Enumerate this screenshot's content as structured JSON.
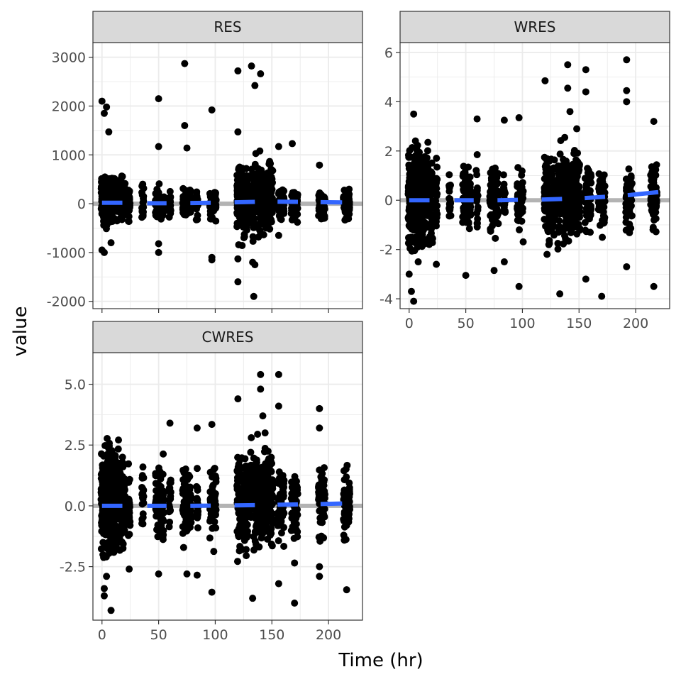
{
  "figure": {
    "xlabel": "Time (hr)",
    "ylabel": "value"
  },
  "colors": {
    "point": "#000000",
    "zero_line": "#b3b3b3",
    "smooth_line": "#3366ff",
    "strip_fill": "#d9d9d9",
    "panel_border": "#333333",
    "grid": "#ebebeb",
    "tick_text": "#4d4d4d"
  },
  "chart_data": [
    {
      "type": "scatter",
      "title": "RES",
      "xlim": [
        -8,
        230
      ],
      "ylim": [
        -2150,
        3300
      ],
      "xticks": [
        0,
        50,
        100,
        150,
        200
      ],
      "yticks": [
        -2000,
        -1000,
        0,
        1000,
        2000,
        3000
      ],
      "ytick_labels": [
        "-2000",
        "-1000",
        "0",
        "1000",
        "2000",
        "3000"
      ],
      "show_x_tick_labels": false,
      "reference_line": 0,
      "dose_times": [
        0,
        1,
        2,
        3,
        4,
        5,
        6,
        7,
        8,
        9,
        10,
        11,
        12,
        14,
        16,
        18,
        20,
        24,
        36,
        48,
        50,
        52,
        54,
        60,
        72,
        74,
        76,
        78,
        84,
        96,
        98,
        100,
        120,
        122,
        124,
        126,
        128,
        132,
        134,
        136,
        138,
        140,
        142,
        144,
        146,
        148,
        150,
        156,
        158,
        160,
        168,
        170,
        172,
        192,
        194,
        196,
        214,
        216,
        218
      ],
      "spread": {
        "near0": [
          -550,
          700
        ],
        "later": [
          -450,
          450
        ],
        "peak": [
          -900,
          1100
        ]
      },
      "outliers": [
        [
          0,
          2100
        ],
        [
          2,
          1850
        ],
        [
          4,
          1980
        ],
        [
          6,
          1470
        ],
        [
          0,
          -950
        ],
        [
          2,
          -1000
        ],
        [
          8,
          -800
        ],
        [
          50,
          2150
        ],
        [
          50,
          1170
        ],
        [
          50,
          -820
        ],
        [
          50,
          -1000
        ],
        [
          73,
          2870
        ],
        [
          73,
          1600
        ],
        [
          75,
          1140
        ],
        [
          97,
          1920
        ],
        [
          97,
          -1100
        ],
        [
          97,
          -1150
        ],
        [
          120,
          2720
        ],
        [
          120,
          1470
        ],
        [
          120,
          -1130
        ],
        [
          120,
          -1600
        ],
        [
          132,
          2820
        ],
        [
          135,
          2420
        ],
        [
          140,
          2660
        ],
        [
          133,
          -1200
        ],
        [
          135,
          -1250
        ],
        [
          134,
          -1900
        ],
        [
          156,
          1170
        ],
        [
          156,
          -650
        ],
        [
          168,
          1230
        ],
        [
          192,
          790
        ]
      ],
      "smooth": [
        [
          0,
          20
        ],
        [
          20,
          20
        ],
        [
          40,
          10
        ],
        [
          60,
          10
        ],
        [
          80,
          15
        ],
        [
          100,
          20
        ],
        [
          120,
          30
        ],
        [
          140,
          40
        ],
        [
          160,
          40
        ],
        [
          180,
          35
        ],
        [
          200,
          30
        ],
        [
          215,
          25
        ]
      ],
      "smooth_segments": [
        [
          0,
          18
        ],
        [
          40,
          57
        ],
        [
          78,
          96
        ],
        [
          117,
          135
        ],
        [
          155,
          173
        ],
        [
          193,
          212
        ]
      ]
    },
    {
      "type": "scatter",
      "title": "WRES",
      "xlim": [
        -8,
        230
      ],
      "ylim": [
        -4.4,
        6.4
      ],
      "xticks": [
        0,
        50,
        100,
        150,
        200
      ],
      "yticks": [
        -4,
        -2,
        0,
        2,
        4,
        6
      ],
      "ytick_labels": [
        "-4",
        "-2",
        "0",
        "2",
        "4",
        "6"
      ],
      "show_x_tick_labels": true,
      "reference_line": 0,
      "dose_times": [
        0,
        1,
        2,
        3,
        4,
        5,
        6,
        7,
        8,
        9,
        10,
        11,
        12,
        14,
        16,
        18,
        20,
        24,
        36,
        48,
        50,
        52,
        54,
        60,
        72,
        74,
        76,
        78,
        84,
        96,
        98,
        100,
        120,
        122,
        124,
        126,
        128,
        132,
        134,
        136,
        138,
        140,
        142,
        144,
        146,
        148,
        150,
        156,
        158,
        160,
        168,
        170,
        172,
        192,
        194,
        196,
        214,
        216,
        218
      ],
      "spread": {
        "near0": [
          -2.5,
          2.8
        ],
        "later": [
          -1.8,
          2.0
        ],
        "peak": [
          -2.3,
          2.6
        ]
      },
      "outliers": [
        [
          4,
          3.5
        ],
        [
          0,
          -3.0
        ],
        [
          2,
          -3.7
        ],
        [
          4,
          -4.1
        ],
        [
          8,
          -2.5
        ],
        [
          24,
          -2.6
        ],
        [
          50,
          -3.05
        ],
        [
          60,
          3.3
        ],
        [
          75,
          -2.85
        ],
        [
          84,
          3.25
        ],
        [
          84,
          -2.5
        ],
        [
          97,
          3.35
        ],
        [
          97,
          -3.5
        ],
        [
          120,
          4.85
        ],
        [
          133,
          -3.8
        ],
        [
          140,
          5.5
        ],
        [
          140,
          4.55
        ],
        [
          142,
          3.6
        ],
        [
          148,
          2.9
        ],
        [
          156,
          5.3
        ],
        [
          156,
          4.4
        ],
        [
          156,
          -3.2
        ],
        [
          170,
          -3.9
        ],
        [
          192,
          5.7
        ],
        [
          192,
          4.45
        ],
        [
          192,
          4.0
        ],
        [
          192,
          -2.7
        ],
        [
          216,
          3.2
        ],
        [
          216,
          -3.5
        ]
      ],
      "smooth": [
        [
          0,
          0.0
        ],
        [
          20,
          0.0
        ],
        [
          40,
          0.0
        ],
        [
          60,
          0.0
        ],
        [
          80,
          0.0
        ],
        [
          100,
          0.02
        ],
        [
          120,
          0.03
        ],
        [
          140,
          0.06
        ],
        [
          160,
          0.1
        ],
        [
          180,
          0.16
        ],
        [
          200,
          0.23
        ],
        [
          220,
          0.33
        ]
      ],
      "smooth_segments": [
        [
          0,
          18
        ],
        [
          40,
          57
        ],
        [
          78,
          96
        ],
        [
          117,
          135
        ],
        [
          155,
          173
        ],
        [
          193,
          220
        ]
      ]
    },
    {
      "type": "scatter",
      "title": "CWRES",
      "xlim": [
        -8,
        230
      ],
      "ylim": [
        -4.7,
        6.3
      ],
      "xticks": [
        0,
        50,
        100,
        150,
        200
      ],
      "yticks": [
        -2.5,
        0,
        2.5,
        5
      ],
      "ytick_labels": [
        "-2.5",
        "0.0",
        "2.5",
        "5.0"
      ],
      "show_x_tick_labels": true,
      "reference_line": 0,
      "dose_times": [
        0,
        1,
        2,
        3,
        4,
        5,
        6,
        7,
        8,
        9,
        10,
        11,
        12,
        14,
        16,
        18,
        20,
        24,
        36,
        48,
        50,
        52,
        54,
        60,
        72,
        74,
        76,
        78,
        84,
        96,
        98,
        100,
        120,
        122,
        124,
        126,
        128,
        132,
        134,
        136,
        138,
        140,
        142,
        144,
        146,
        148,
        150,
        156,
        158,
        160,
        168,
        170,
        172,
        192,
        194,
        196,
        214,
        216,
        218
      ],
      "spread": {
        "near0": [
          -2.6,
          3.2
        ],
        "later": [
          -2.0,
          2.3
        ],
        "peak": [
          -2.4,
          3.0
        ]
      },
      "outliers": [
        [
          2,
          -3.4
        ],
        [
          2,
          -3.7
        ],
        [
          4,
          -2.9
        ],
        [
          8,
          -4.3
        ],
        [
          24,
          -2.6
        ],
        [
          50,
          -2.8
        ],
        [
          60,
          3.4
        ],
        [
          75,
          -2.8
        ],
        [
          84,
          3.2
        ],
        [
          84,
          -2.85
        ],
        [
          97,
          3.35
        ],
        [
          97,
          -3.55
        ],
        [
          120,
          4.4
        ],
        [
          133,
          -3.8
        ],
        [
          140,
          5.4
        ],
        [
          140,
          4.8
        ],
        [
          142,
          3.7
        ],
        [
          144,
          3.0
        ],
        [
          156,
          5.4
        ],
        [
          156,
          4.1
        ],
        [
          156,
          -3.2
        ],
        [
          170,
          -2.35
        ],
        [
          170,
          -4.0
        ],
        [
          192,
          4.0
        ],
        [
          192,
          3.2
        ],
        [
          192,
          -2.5
        ],
        [
          192,
          -2.9
        ],
        [
          216,
          -3.45
        ]
      ],
      "smooth": [
        [
          0,
          0.0
        ],
        [
          40,
          0.0
        ],
        [
          80,
          0.0
        ],
        [
          120,
          0.02
        ],
        [
          160,
          0.05
        ],
        [
          200,
          0.08
        ],
        [
          215,
          0.1
        ]
      ],
      "smooth_segments": [
        [
          0,
          18
        ],
        [
          40,
          57
        ],
        [
          78,
          96
        ],
        [
          117,
          135
        ],
        [
          155,
          173
        ],
        [
          193,
          212
        ]
      ]
    }
  ]
}
